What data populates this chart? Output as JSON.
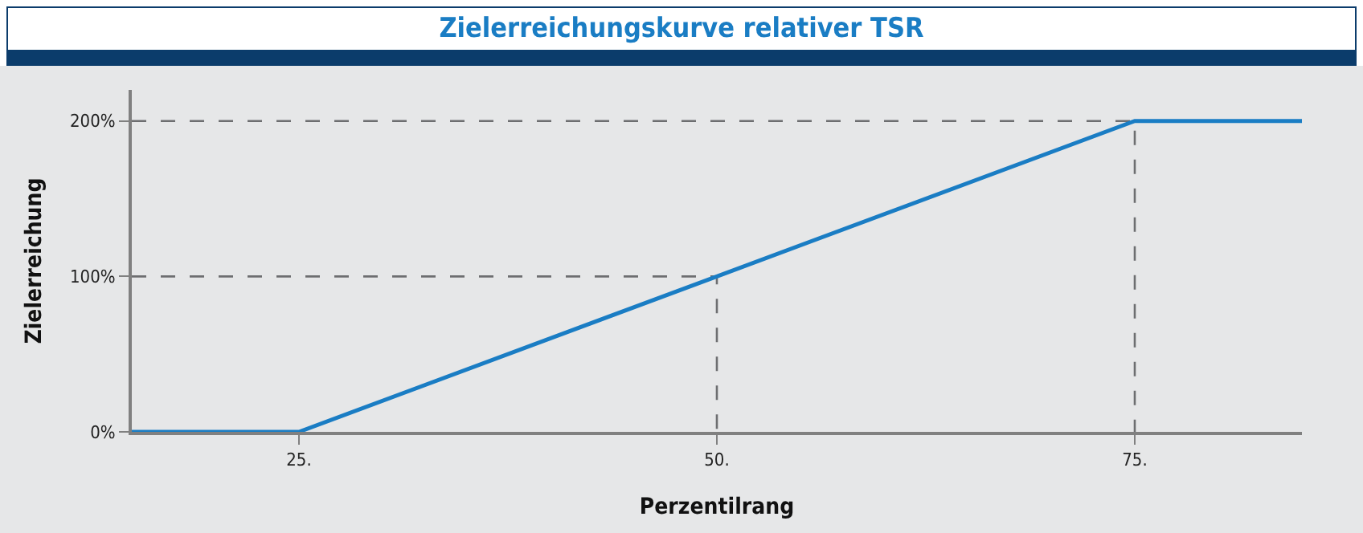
{
  "chart_data": {
    "type": "line",
    "title": "Zielerreichungskurve relativer TSR",
    "xlabel": "Perzentilrang",
    "ylabel": "Zielerreichung",
    "xlim": [
      15,
      85
    ],
    "xticks": [
      {
        "value": 25,
        "label": "25."
      },
      {
        "value": 50,
        "label": "50."
      },
      {
        "value": 75,
        "label": "75."
      }
    ],
    "ylim": [
      0,
      220
    ],
    "yticks": [
      {
        "value": 0,
        "label": "0%"
      },
      {
        "value": 100,
        "label": "100%"
      },
      {
        "value": 200,
        "label": "200%"
      }
    ],
    "grid": false,
    "marker": "none",
    "series": [
      {
        "x": [
          15,
          50,
          50
        ],
        "values": [
          100,
          100,
          0
        ],
        "color": "#6d6e70",
        "line_style": "dashed"
      },
      {
        "x": [
          15,
          75,
          75
        ],
        "values": [
          200,
          200,
          0
        ],
        "color": "#6d6e70",
        "line_style": "dashed"
      },
      {
        "x": [
          15,
          25,
          50,
          75,
          85
        ],
        "values": [
          0,
          0,
          100,
          200,
          200
        ],
        "color": "#1a7dc4",
        "line_style": "solid"
      }
    ]
  }
}
